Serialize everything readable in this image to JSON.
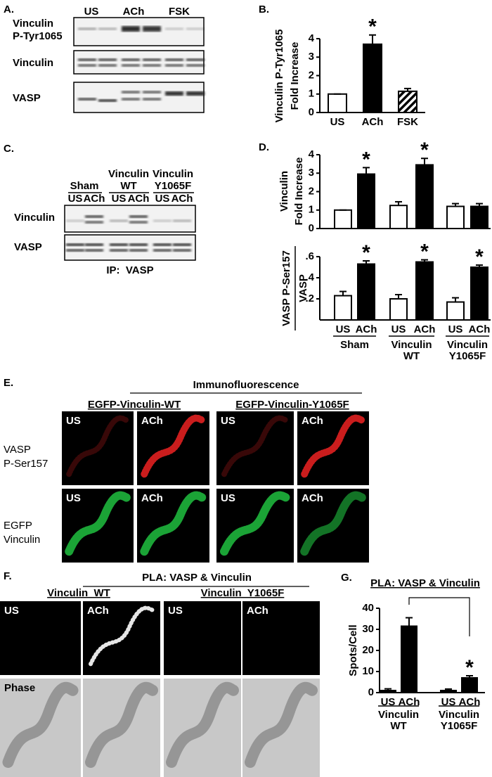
{
  "chart_data": [
    {
      "type": "bar",
      "categories": [
        "US",
        "ACh",
        "FSK"
      ],
      "values": [
        1,
        3.7,
        1.15
      ],
      "errors": [
        0,
        0.5,
        0.15
      ],
      "fills": [
        "#ffffff",
        "#000000",
        "hatched"
      ],
      "ylim": [
        0,
        4
      ],
      "yticks": [
        0,
        1,
        2,
        3,
        4
      ],
      "ylabel": [
        "Vinculin P-Tyr1065",
        "Fold Increase"
      ],
      "annotations": [
        {
          "text": "*",
          "category": 1
        }
      ]
    },
    {
      "type": "bar",
      "values": [
        1,
        2.95,
        1.25,
        3.45,
        1.2,
        1.2
      ],
      "errors": [
        0,
        0.35,
        0.2,
        0.35,
        0.15,
        0.15
      ],
      "fills": [
        "#ffffff",
        "#000000",
        "#ffffff",
        "#000000",
        "#ffffff",
        "#000000"
      ],
      "ylim": [
        0,
        4
      ],
      "yticks": [
        0,
        1,
        2,
        3,
        4
      ],
      "ylabel": [
        "Vinculin",
        "Fold Increase"
      ],
      "annotations": [
        {
          "text": "*",
          "category": 1
        },
        {
          "text": "*",
          "category": 3
        }
      ]
    },
    {
      "type": "bar",
      "categories": [
        "US",
        "ACh",
        "US",
        "ACh",
        "US",
        "ACh"
      ],
      "values": [
        0.23,
        0.53,
        0.2,
        0.55,
        0.17,
        0.5
      ],
      "errors": [
        0.04,
        0.03,
        0.04,
        0.02,
        0.04,
        0.02
      ],
      "fills": [
        "#ffffff",
        "#000000",
        "#ffffff",
        "#000000",
        "#ffffff",
        "#000000"
      ],
      "ylim": [
        0,
        0.6
      ],
      "yticks": [
        {
          "value": 0.2,
          "label": ".2"
        },
        {
          "value": 0.4,
          "label": ".4"
        },
        {
          "value": 0.6,
          "label": ".6"
        }
      ],
      "ylabel": [
        "VASP P-Ser157",
        "VASP"
      ],
      "groups": [
        [
          "Sham"
        ],
        [
          "Vinculin",
          "WT"
        ],
        [
          "Vinculin",
          "Y1065F"
        ]
      ],
      "annotations": [
        {
          "text": "*",
          "category": 1
        },
        {
          "text": "*",
          "category": 3
        },
        {
          "text": "*",
          "category": 5
        }
      ]
    },
    {
      "type": "bar",
      "title": "PLA: VASP & Vinculin",
      "categories": [
        "US",
        "ACh",
        "US",
        "ACh"
      ],
      "values": [
        1,
        31.5,
        1,
        7
      ],
      "errors": [
        0.8,
        4,
        0.7,
        1
      ],
      "fills": [
        "#000000",
        "#000000",
        "#000000",
        "#000000"
      ],
      "ylim": [
        0,
        40
      ],
      "yticks": [
        0,
        10,
        20,
        30,
        40
      ],
      "ylabel": [
        "Spots/Cell"
      ],
      "groups": [
        [
          "Vinculin",
          "WT"
        ],
        [
          "Vinculin",
          "Y1065F"
        ]
      ],
      "annotations": [
        {
          "text": "*",
          "category": 3
        }
      ]
    }
  ],
  "panels": {
    "A": {
      "label": "A.",
      "lanes": [
        "US",
        "ACh",
        "FSK"
      ],
      "rows": [
        [
          "Vinculin",
          "P-Tyr1065"
        ],
        [
          "Vinculin"
        ],
        [
          "VASP"
        ]
      ]
    },
    "B": {
      "label": "B."
    },
    "C": {
      "label": "C.",
      "groups": [
        [
          "Sham"
        ],
        [
          "Vinculin",
          "WT"
        ],
        [
          "Vinculin",
          "Y1065F"
        ]
      ],
      "lanes": [
        "US",
        "ACh",
        "US",
        "ACh",
        "US",
        "ACh"
      ],
      "rows": [
        "Vinculin",
        "VASP"
      ],
      "caption": "IP:  VASP"
    },
    "D": {
      "label": "D."
    },
    "E": {
      "label": "E.",
      "title": "Immunofluorescence",
      "columns": [
        "EGFP-Vinculin-WT",
        "EGFP-Vinculin-Y1065F"
      ],
      "rows": [
        [
          "VASP",
          "P-Ser157"
        ],
        [
          "EGFP",
          "Vinculin"
        ]
      ],
      "images": [
        [
          "US",
          "ACh",
          "US",
          "ACh"
        ],
        [
          "US",
          "ACh",
          "US",
          "ACh"
        ]
      ]
    },
    "F": {
      "label": "F.",
      "title": "PLA: VASP & Vinculin",
      "columns": [
        "Vinculin  WT",
        "Vinculin  Y1065F"
      ],
      "images": [
        [
          "US",
          "ACh",
          "US",
          "ACh"
        ],
        [
          "Phase"
        ]
      ]
    },
    "G": {
      "label": "G."
    }
  }
}
